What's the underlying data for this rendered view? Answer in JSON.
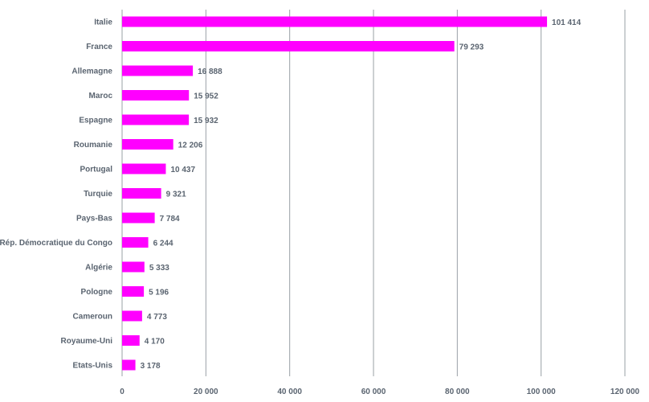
{
  "chart_data": {
    "type": "bar",
    "orientation": "horizontal",
    "title": "",
    "xlabel": "",
    "ylabel": "",
    "categories": [
      "Italie",
      "France",
      "Allemagne",
      "Maroc",
      "Espagne",
      "Roumanie",
      "Portugal",
      "Turquie",
      "Pays-Bas",
      "Rép. Démocratique du Congo",
      "Algérie",
      "Pologne",
      "Cameroun",
      "Royaume-Uni",
      "Etats-Unis"
    ],
    "values": [
      101414,
      79293,
      16888,
      15952,
      15932,
      12206,
      10437,
      9321,
      7784,
      6244,
      5333,
      5196,
      4773,
      4170,
      3178
    ],
    "value_labels": [
      "101 414",
      "79 293",
      "16 888",
      "15 952",
      "15 932",
      "12 206",
      "10 437",
      "9 321",
      "7 784",
      "6 244",
      "5 333",
      "5 196",
      "4 773",
      "4 170",
      "3 178"
    ],
    "xlim": [
      0,
      120000
    ],
    "xticks": [
      0,
      20000,
      40000,
      60000,
      80000,
      100000,
      120000
    ],
    "xtick_labels": [
      "0",
      "20 000",
      "40 000",
      "60 000",
      "80 000",
      "100 000",
      "120 000"
    ],
    "grid": true,
    "legend": "none",
    "bar_color": "#ff00ff",
    "grid_color": "#9aa0a6",
    "text_color": "#5a6470"
  }
}
